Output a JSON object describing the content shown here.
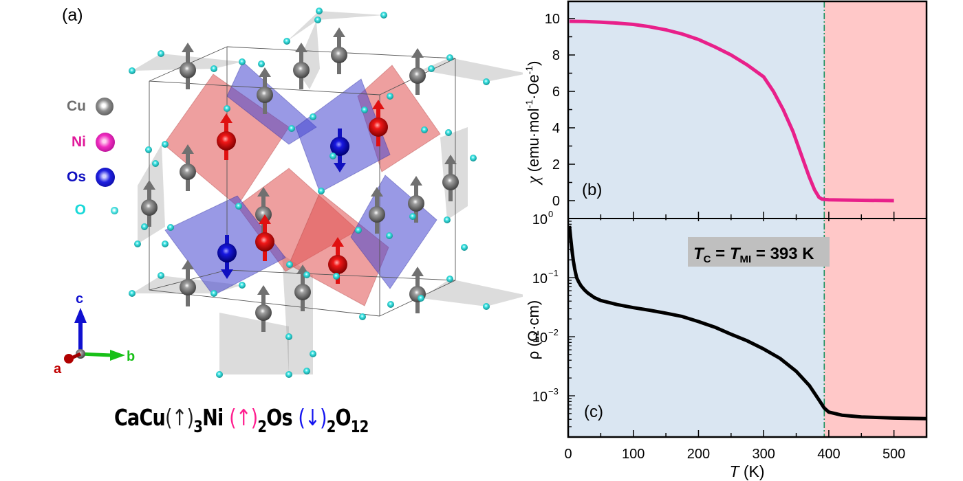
{
  "panel_a": {
    "label": "(a)",
    "legend": [
      {
        "element": "Cu",
        "color": "#6e6e6e",
        "sphere": "#808080"
      },
      {
        "element": "Ni",
        "color": "#e0199a",
        "sphere": "#e81cb0"
      },
      {
        "element": "Os",
        "color": "#1010c0",
        "sphere": "#1a1ad0"
      },
      {
        "element": "O",
        "color": "#18d8d8",
        "sphere": "#3fe0e0"
      }
    ],
    "axes": {
      "a": "a",
      "b": "b",
      "c": "c",
      "a_color": "#c00000",
      "b_color": "#18c018",
      "c_color": "#1010d0"
    },
    "formula": {
      "ca_cu": "CaCu",
      "cu_arrow": "↑",
      "cu_sub": "3",
      "ni": "Ni",
      "ni_arrow": "↑",
      "ni_sub": "2",
      "os": "Os",
      "os_arrow": "↓",
      "os_sub": "2",
      "o": "O",
      "o_sub": "12",
      "cu_color": "#222222",
      "ni_color": "#ff1f8f",
      "os_color": "#1414f0"
    }
  },
  "chart_data": [
    {
      "type": "line",
      "panel_label": "(b)",
      "title": "",
      "xlabel": "T (K)",
      "ylabel": "χ (emu·mol⁻¹·Oe⁻¹)",
      "ylabel_parts": {
        "symbol": "χ",
        "unit": "(emu·mol",
        "exp1": "-1",
        "mid": "·Oe",
        "exp2": "-1",
        "end": ")"
      },
      "xlim": [
        0,
        550
      ],
      "ylim": [
        -0.6,
        11
      ],
      "yticks": [
        0,
        2,
        4,
        6,
        8,
        10
      ],
      "yticklabels": [
        "0",
        "2",
        "4",
        "6",
        "8",
        "10"
      ],
      "xticks": [
        0,
        100,
        200,
        300,
        400,
        500
      ],
      "line_color": "#e8208a",
      "series": [
        {
          "name": "chi",
          "x": [
            2,
            25,
            50,
            75,
            100,
            125,
            150,
            175,
            200,
            225,
            250,
            275,
            300,
            315,
            330,
            345,
            360,
            370,
            378,
            385,
            390,
            395,
            400,
            450,
            500
          ],
          "y": [
            9.85,
            9.84,
            9.8,
            9.75,
            9.68,
            9.55,
            9.38,
            9.15,
            8.85,
            8.45,
            8.0,
            7.45,
            6.8,
            6.0,
            5.0,
            3.8,
            2.3,
            1.3,
            0.6,
            0.18,
            0.08,
            0.06,
            0.05,
            0.02,
            0.0
          ]
        }
      ]
    },
    {
      "type": "line",
      "panel_label": "(c)",
      "title": "",
      "xlabel": "T (K)",
      "ylabel": "ρ (Ω·cm)",
      "yscale": "log",
      "xlim": [
        0,
        550
      ],
      "ylim": [
        0.0002,
        1
      ],
      "yticks": [
        1,
        0.1,
        0.01,
        0.001
      ],
      "yticklabels": [
        {
          "base": "10",
          "exp": "0"
        },
        {
          "base": "10",
          "exp": "−1"
        },
        {
          "base": "10",
          "exp": "−2"
        },
        {
          "base": "10",
          "exp": "−3"
        }
      ],
      "xticks": [
        0,
        100,
        200,
        300,
        400,
        500
      ],
      "xticklabels": [
        "0",
        "100",
        "200",
        "300",
        "400",
        "500"
      ],
      "line_color": "#000000",
      "series": [
        {
          "name": "rho",
          "x": [
            2,
            4,
            6,
            8,
            10,
            13,
            16,
            20,
            25,
            30,
            40,
            50,
            75,
            100,
            125,
            150,
            175,
            200,
            225,
            250,
            275,
            300,
            325,
            350,
            370,
            385,
            393,
            400,
            420,
            450,
            500,
            550
          ],
          "y": [
            0.75,
            0.45,
            0.28,
            0.19,
            0.14,
            0.1,
            0.085,
            0.072,
            0.062,
            0.055,
            0.046,
            0.041,
            0.035,
            0.031,
            0.028,
            0.025,
            0.022,
            0.018,
            0.0145,
            0.011,
            0.0085,
            0.0062,
            0.0043,
            0.0026,
            0.0015,
            0.00085,
            0.00062,
            0.00053,
            0.00047,
            0.00044,
            0.00042,
            0.00041
          ]
        }
      ]
    }
  ],
  "transition": {
    "T": 393,
    "annotation": {
      "t1": "T",
      "s1": "C",
      "eq1": " = ",
      "t2": "T",
      "s2": "MI",
      "eq2": " = 393 K"
    },
    "line_color": "#1a9060"
  },
  "regions": {
    "low_color": "#dae6f2",
    "high_color": "#ffc8c8"
  },
  "xaxis_title": {
    "symbol": "T",
    "unit": " (K)"
  }
}
